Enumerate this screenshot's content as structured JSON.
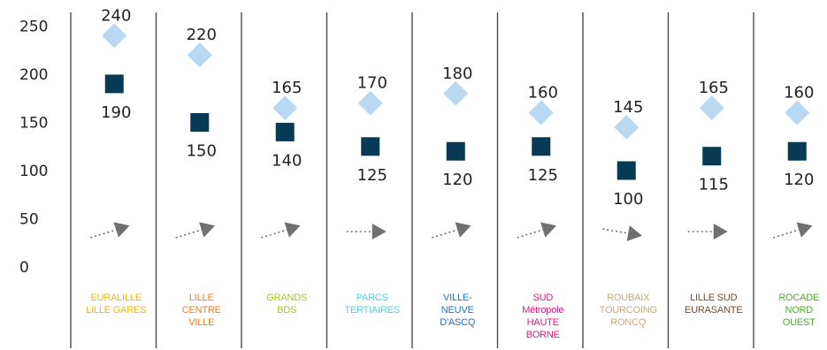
{
  "chart_data": {
    "type": "scatter",
    "title": "",
    "xlabel": "",
    "ylabel": "",
    "ylim": [
      0,
      250
    ],
    "yticks": [
      0,
      50,
      100,
      150,
      200,
      250
    ],
    "grid": false,
    "legend": "none",
    "categories": [
      {
        "lines": [
          "EURALILLE",
          "LILLE GARES"
        ],
        "color": "#f2b705"
      },
      {
        "lines": [
          "LILLE",
          "CENTRE",
          "VILLE"
        ],
        "color": "#f07d1e"
      },
      {
        "lines": [
          "GRANDS",
          "BDS"
        ],
        "color": "#9ccc1c"
      },
      {
        "lines": [
          "PARCS",
          "TERTIAIRES"
        ],
        "color": "#4fd0e8"
      },
      {
        "lines": [
          "VILLE-",
          "NEUVE",
          "D'ASCQ"
        ],
        "color": "#1e73be"
      },
      {
        "lines": [
          "SUD",
          "Métropole",
          "HAUTE",
          "BORNE"
        ],
        "color": "#e0197d"
      },
      {
        "lines": [
          "ROUBAIX",
          "TOURCOING",
          "RONCQ"
        ],
        "color": "#c8a96e"
      },
      {
        "lines": [
          "LILLE SUD",
          "EURASANTE"
        ],
        "color": "#7a4a2a"
      },
      {
        "lines": [
          "ROCADE",
          "NORD",
          "OUEST"
        ],
        "color": "#49b02c"
      }
    ],
    "series": [
      {
        "marker": "diamond",
        "color": "#b9d8f2",
        "values": [
          240,
          220,
          165,
          170,
          180,
          160,
          145,
          165,
          160
        ],
        "labels": [
          "240",
          "220",
          "165",
          "170",
          "180",
          "160",
          "145",
          "165",
          "160"
        ]
      },
      {
        "marker": "square",
        "color": "#073a55",
        "values": [
          190,
          150,
          140,
          125,
          120,
          125,
          100,
          115,
          120
        ],
        "labels": [
          "190",
          "150",
          "140",
          "125",
          "120",
          "125",
          "100",
          "115",
          "120"
        ]
      }
    ],
    "trend_arrows": [
      "up",
      "up",
      "up",
      "flat",
      "up",
      "up",
      "down",
      "flat",
      "up"
    ],
    "trend_color": "#707070"
  }
}
